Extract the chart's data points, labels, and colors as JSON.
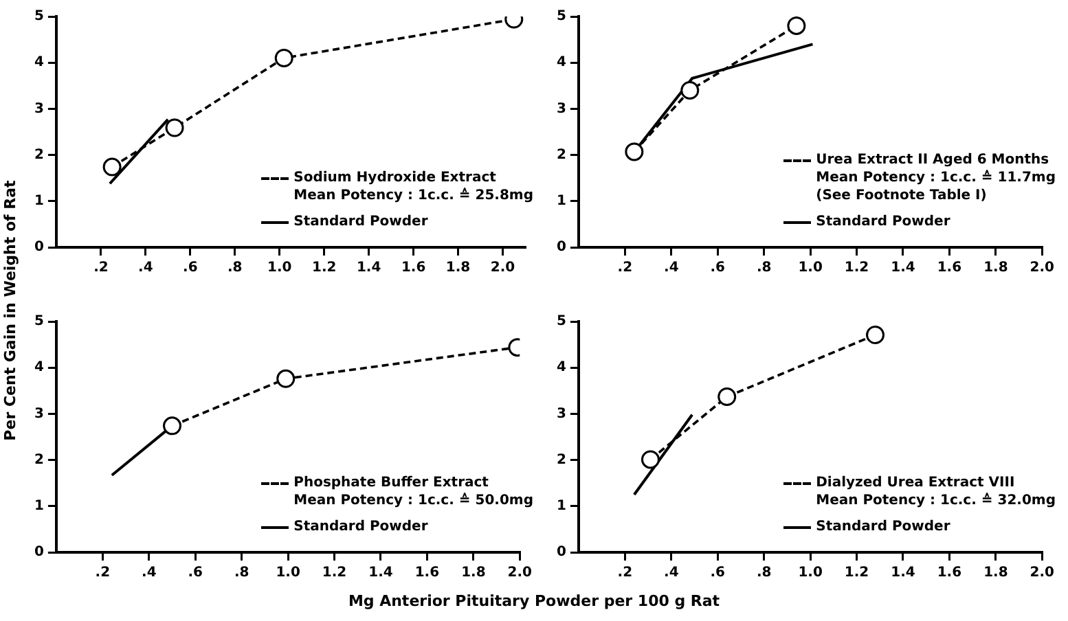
{
  "chart_data": [
    {
      "type": "line",
      "ylabel": "Per Cent Gain in Weight of Rat",
      "xlim": [
        0,
        2.1
      ],
      "ylim": [
        0,
        5
      ],
      "yticks": [
        0,
        1,
        2,
        3,
        4,
        5
      ],
      "xticks": [
        {
          "value": 0.2,
          "label": ".2"
        },
        {
          "value": 0.4,
          "label": ".4"
        },
        {
          "value": 0.6,
          "label": ".6"
        },
        {
          "value": 0.8,
          "label": ".8"
        },
        {
          "value": 1.0,
          "label": "1.0"
        },
        1.2,
        1.4,
        1.6,
        1.8,
        {
          "value": 2.0,
          "label": "2.0"
        }
      ],
      "grid": false,
      "legend": "bottom right",
      "annotations": [
        "Mean Potency : 1c.c. ≙ 25.8mg"
      ],
      "series": [
        {
          "name": "Sodium Hydroxide Extract",
          "color": "#000000",
          "x": [
            0.25,
            0.53,
            1.02,
            2.05
          ],
          "values": [
            1.74,
            2.59,
            4.1,
            4.94
          ],
          "marker": "circle",
          "line_style": "dashed"
        },
        {
          "name": "Standard Powder",
          "color": "#000000",
          "x": [
            0.24,
            0.5
          ],
          "values": [
            1.38,
            2.77
          ],
          "marker": "none",
          "line_style": "solid"
        }
      ]
    },
    {
      "type": "line",
      "xlim": [
        0,
        2.0
      ],
      "ylim": [
        0,
        5
      ],
      "yticks": [
        0,
        1,
        2,
        3,
        4,
        5
      ],
      "xticks": [
        {
          "value": 0.2,
          "label": ".2"
        },
        {
          "value": 0.4,
          "label": ".4"
        },
        {
          "value": 0.6,
          "label": ".6"
        },
        {
          "value": 0.8,
          "label": ".8"
        },
        {
          "value": 1.0,
          "label": "1.0"
        },
        1.2,
        1.4,
        1.6,
        1.8,
        {
          "value": 2.0,
          "label": "2.0"
        }
      ],
      "grid": false,
      "legend": "bottom right",
      "annotations": [
        "Mean Potency : 1c.c. ≙ 11.7mg",
        "(See Footnote Table I)"
      ],
      "series": [
        {
          "name": "Urea Extract II Aged 6 Months",
          "color": "#000000",
          "x": [
            0.24,
            0.48,
            0.94
          ],
          "values": [
            2.07,
            3.4,
            4.8
          ],
          "marker": "circle",
          "line_style": "dashed"
        },
        {
          "name": "Standard Powder",
          "color": "#000000",
          "x": [
            0.23,
            0.49,
            1.01
          ],
          "values": [
            2.0,
            3.66,
            4.4
          ],
          "marker": "none",
          "line_style": "solid"
        }
      ]
    },
    {
      "type": "line",
      "xlim": [
        0,
        2.0
      ],
      "ylim": [
        0,
        5
      ],
      "yticks": [
        0,
        1,
        2,
        3,
        4,
        5
      ],
      "xticks": [
        {
          "value": 0.2,
          "label": ".2"
        },
        {
          "value": 0.4,
          "label": ".4"
        },
        {
          "value": 0.6,
          "label": ".6"
        },
        {
          "value": 0.8,
          "label": ".8"
        },
        {
          "value": 1.0,
          "label": "1.0"
        },
        1.2,
        1.4,
        1.6,
        1.8,
        {
          "value": 2.0,
          "label": "2.0"
        }
      ],
      "grid": false,
      "legend": "bottom right",
      "xlabel": "Mg  Anterior Pituitary Powder per 100 g Rat",
      "annotations": [
        "Mean Potency : 1c.c. ≙ 50.0mg"
      ],
      "series": [
        {
          "name": "Phosphate Buffer Extract",
          "color": "#000000",
          "x": [
            0.5,
            0.99,
            1.99
          ],
          "values": [
            2.74,
            3.76,
            4.44
          ],
          "marker": "circle",
          "line_style": "dashed"
        },
        {
          "name": "Standard Powder",
          "color": "#000000",
          "x": [
            0.24,
            0.5
          ],
          "values": [
            1.67,
            2.74
          ],
          "marker": "none",
          "line_style": "solid"
        }
      ]
    },
    {
      "type": "line",
      "xlim": [
        0,
        2.0
      ],
      "ylim": [
        0,
        5
      ],
      "yticks": [
        0,
        1,
        2,
        3,
        4,
        5
      ],
      "xticks": [
        {
          "value": 0.2,
          "label": ".2"
        },
        {
          "value": 0.4,
          "label": ".4"
        },
        {
          "value": 0.6,
          "label": ".6"
        },
        {
          "value": 0.8,
          "label": ".8"
        },
        {
          "value": 1.0,
          "label": "1.0"
        },
        1.2,
        1.4,
        1.6,
        1.8,
        {
          "value": 2.0,
          "label": "2.0"
        }
      ],
      "grid": false,
      "legend": "bottom right",
      "annotations": [
        "Mean Potency : 1c.c. ≙ 32.0mg"
      ],
      "series": [
        {
          "name": "Dialyzed Urea Extract VIII",
          "color": "#000000",
          "x": [
            0.31,
            0.64,
            1.28
          ],
          "values": [
            2.01,
            3.37,
            4.71
          ],
          "marker": "circle",
          "line_style": "dashed"
        },
        {
          "name": "Standard Powder",
          "color": "#000000",
          "x": [
            0.24,
            0.49
          ],
          "values": [
            1.25,
            2.98
          ],
          "marker": "none",
          "line_style": "solid"
        }
      ]
    }
  ]
}
